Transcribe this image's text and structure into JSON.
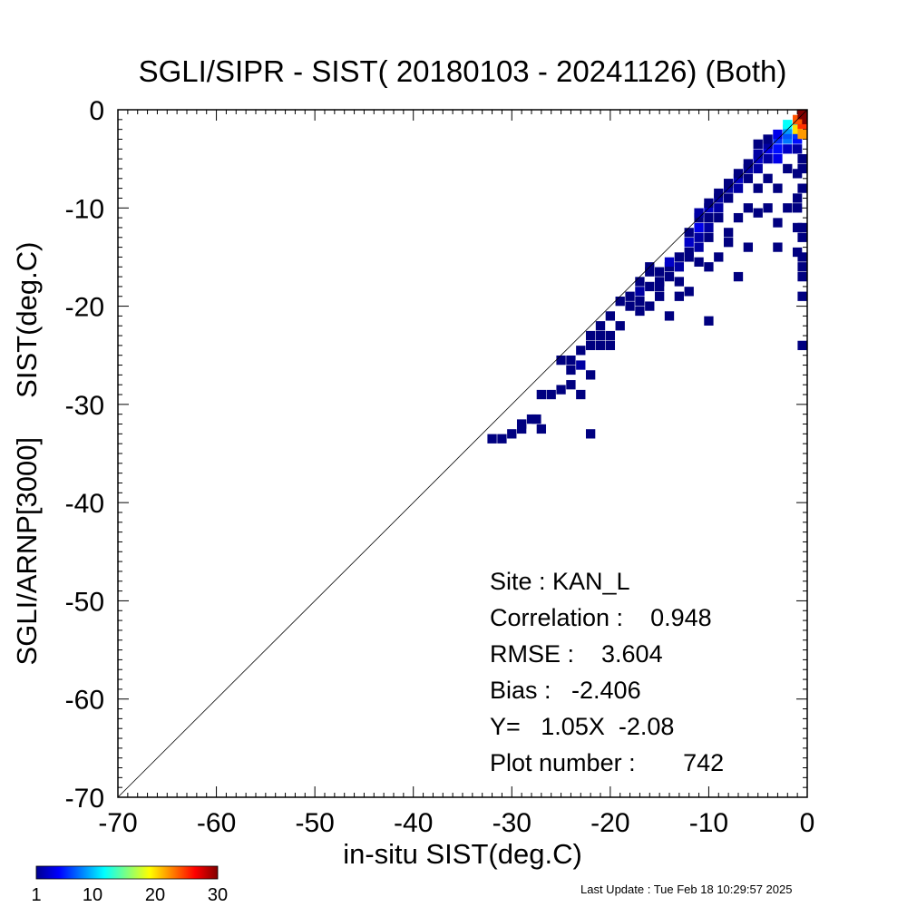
{
  "chart_data": {
    "type": "heatmap",
    "title": "SGLI/SIPR - SIST( 20180103 - 20241126) (Both)",
    "xlabel": "in-situ SIST(deg.C)",
    "ylabel": "SGLI/ARNP[3000]     SIST(deg.C)",
    "xlim": [
      -70,
      0
    ],
    "ylim": [
      -70,
      0
    ],
    "xticks": [
      -70,
      -60,
      -50,
      -40,
      -30,
      -20,
      -10,
      0
    ],
    "yticks": [
      -70,
      -60,
      -50,
      -40,
      -30,
      -20,
      -10,
      0
    ],
    "identity_line": true,
    "grid": false,
    "colorbar": {
      "min": 1,
      "max": 30,
      "tick_labels": [
        "1",
        "10",
        "20",
        "30"
      ]
    },
    "stats": [
      "Site : KAN_L",
      "Correlation :    0.948",
      "RMSE :    3.604",
      "Bias :   -2.406",
      "Y=   1.05X  -2.08",
      "Plot number :       742"
    ],
    "cells": [
      [
        -32,
        -33.5,
        1
      ],
      [
        -31,
        -33.5,
        1
      ],
      [
        -30,
        -33,
        1
      ],
      [
        -29,
        -32,
        1
      ],
      [
        -28,
        -31.5,
        1
      ],
      [
        -27.5,
        -31.5,
        1
      ],
      [
        -29,
        -32.5,
        1
      ],
      [
        -27,
        -32.5,
        1
      ],
      [
        -26,
        -29,
        1
      ],
      [
        -25,
        -28.5,
        1
      ],
      [
        -24,
        -28,
        1
      ],
      [
        -27,
        -29,
        1
      ],
      [
        -23,
        -29,
        1
      ],
      [
        -22,
        -33,
        1
      ],
      [
        -25,
        -25.5,
        1
      ],
      [
        -24,
        -25.5,
        1
      ],
      [
        -23,
        -26,
        2
      ],
      [
        -22,
        -27,
        1
      ],
      [
        -24,
        -26.5,
        1
      ],
      [
        -23,
        -24.5,
        1
      ],
      [
        -22,
        -24,
        1
      ],
      [
        -21,
        -24,
        1
      ],
      [
        -20,
        -24,
        1
      ],
      [
        -22,
        -23,
        1
      ],
      [
        -21,
        -22,
        1
      ],
      [
        -20,
        -21,
        1
      ],
      [
        -21,
        -23,
        1
      ],
      [
        -19,
        -22,
        1
      ],
      [
        -18,
        -20,
        1
      ],
      [
        -17,
        -19.5,
        1
      ],
      [
        -18,
        -19,
        1
      ],
      [
        -17,
        -18.5,
        2
      ],
      [
        -16,
        -18,
        1
      ],
      [
        -17,
        -17.5,
        1
      ],
      [
        -16,
        -20,
        1
      ],
      [
        -17,
        -20.5,
        1
      ],
      [
        -14,
        -21,
        1
      ],
      [
        -10,
        -21.5,
        1
      ],
      [
        -15,
        -18,
        1
      ],
      [
        -15,
        -16.5,
        1
      ],
      [
        -14,
        -16,
        1
      ],
      [
        -13,
        -16,
        2
      ],
      [
        -14,
        -17,
        1
      ],
      [
        -13,
        -17.5,
        1
      ],
      [
        -14,
        -15.5,
        3
      ],
      [
        -13,
        -15,
        1
      ],
      [
        -12,
        -15,
        1
      ],
      [
        -16,
        -16.5,
        1
      ],
      [
        -12,
        -14.5,
        1
      ],
      [
        -11,
        -14,
        2
      ],
      [
        -12,
        -13.5,
        3
      ],
      [
        -11,
        -13,
        2
      ],
      [
        -10,
        -13,
        1
      ],
      [
        -12,
        -12.5,
        1
      ],
      [
        -11,
        -12,
        4
      ],
      [
        -10,
        -12,
        2
      ],
      [
        -11,
        -11,
        1
      ],
      [
        -10,
        -11,
        1
      ],
      [
        -9,
        -11,
        1
      ],
      [
        -11,
        -10.5,
        2
      ],
      [
        -10,
        -10,
        3
      ],
      [
        -9,
        -10,
        2
      ],
      [
        -10,
        -9.5,
        1
      ],
      [
        -9,
        -9,
        2
      ],
      [
        -8,
        -9,
        1
      ],
      [
        -9,
        -8.5,
        1
      ],
      [
        -8,
        -8,
        2
      ],
      [
        -7,
        -8,
        2
      ],
      [
        -8,
        -7.5,
        1
      ],
      [
        -7,
        -7,
        3
      ],
      [
        -6,
        -7,
        1
      ],
      [
        -6,
        -6,
        2
      ],
      [
        -5,
        -6,
        2
      ],
      [
        -7,
        -6.5,
        1
      ],
      [
        -6,
        -5.5,
        1
      ],
      [
        -5,
        -5,
        3
      ],
      [
        -4,
        -5,
        2
      ],
      [
        -3,
        -5,
        4
      ],
      [
        -5,
        -4.5,
        2
      ],
      [
        -4,
        -4,
        4
      ],
      [
        -3,
        -4,
        5
      ],
      [
        -2,
        -4,
        3
      ],
      [
        -1,
        -4,
        2
      ],
      [
        -4,
        -3.5,
        2
      ],
      [
        -3,
        -3,
        6
      ],
      [
        -2,
        -3,
        8
      ],
      [
        -1,
        -3,
        5
      ],
      [
        -2,
        -2.5,
        7
      ],
      [
        -1,
        -2.5,
        6
      ],
      [
        -2,
        -2,
        9
      ],
      [
        -1,
        -1.5,
        10
      ],
      [
        -1,
        -2,
        20
      ],
      [
        -0.5,
        -2.5,
        22
      ],
      [
        -0.5,
        -1.5,
        25
      ],
      [
        -0.5,
        -1,
        30
      ],
      [
        -1,
        -1,
        24
      ],
      [
        -0.5,
        -0.5,
        30
      ],
      [
        -2,
        -1.5,
        12
      ],
      [
        -3,
        -2.5,
        4
      ],
      [
        -4,
        -3,
        1
      ],
      [
        -5,
        -3.5,
        1
      ],
      [
        -9,
        -15,
        1
      ],
      [
        -8,
        -13.5,
        1
      ],
      [
        -6,
        -14,
        1
      ],
      [
        -7,
        -17,
        1
      ],
      [
        -12,
        -18.5,
        1
      ],
      [
        -10,
        -16,
        1
      ],
      [
        -8,
        -12.5,
        1
      ],
      [
        -7,
        -11,
        1
      ],
      [
        -5,
        -10.5,
        1
      ],
      [
        -5,
        -8,
        1
      ],
      [
        -4,
        -7,
        1
      ],
      [
        -3,
        -8,
        1
      ],
      [
        -2,
        -10,
        1
      ],
      [
        -3,
        -14,
        1
      ],
      [
        -1,
        -14.5,
        1
      ],
      [
        -1,
        -12,
        1
      ],
      [
        -1,
        -10,
        1
      ],
      [
        -1,
        -9,
        1
      ],
      [
        -0.5,
        -12,
        1
      ],
      [
        -0.5,
        -13,
        1
      ],
      [
        -0.5,
        -15,
        1
      ],
      [
        -0.5,
        -16,
        1
      ],
      [
        -0.5,
        -17,
        1
      ],
      [
        -0.5,
        -19,
        1
      ],
      [
        -0.5,
        -24,
        1
      ],
      [
        -0.5,
        -8,
        1
      ],
      [
        -0.5,
        -6,
        1
      ],
      [
        -0.5,
        -5,
        1
      ],
      [
        -2,
        -6,
        1
      ],
      [
        -1,
        -6.5,
        1
      ],
      [
        -4,
        -10,
        1
      ],
      [
        -3,
        -11.5,
        1
      ],
      [
        -6,
        -10,
        1
      ],
      [
        -19,
        -19.5,
        1
      ],
      [
        -20,
        -23,
        1
      ],
      [
        -15,
        -19,
        1
      ],
      [
        -13,
        -19,
        1
      ],
      [
        -16,
        -16,
        1
      ],
      [
        -15,
        -17.5,
        1
      ],
      [
        -11,
        -15.5,
        1
      ]
    ]
  },
  "footer": {
    "last_update": "Last Update : Tue Feb 18 10:29:57 2025"
  }
}
